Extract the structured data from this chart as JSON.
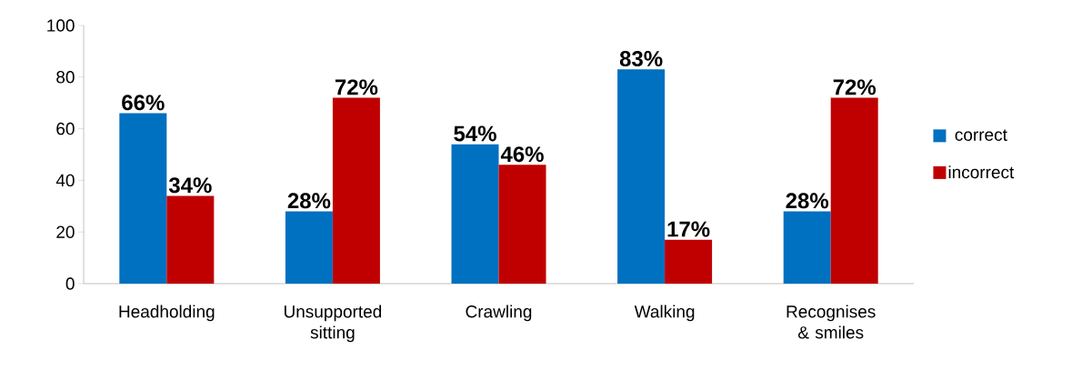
{
  "chart_data": {
    "type": "bar",
    "categories": [
      "Headholding",
      "Unsupported sitting",
      "Crawling",
      "Walking",
      "Recognises & smiles"
    ],
    "series": [
      {
        "name": "correct",
        "color": "#0070c0",
        "values": [
          66,
          28,
          54,
          83,
          28
        ],
        "value_labels": [
          "66%",
          "28%",
          "54%",
          "83%",
          "28%"
        ]
      },
      {
        "name": "incorrect",
        "color": "#c00000",
        "values": [
          34,
          72,
          46,
          17,
          72
        ],
        "value_labels": [
          "34%",
          "72%",
          "46%",
          "17%",
          "72%"
        ]
      }
    ],
    "ylim": [
      0,
      100
    ],
    "yticks": [
      0,
      20,
      40,
      60,
      80,
      100
    ],
    "grid": false,
    "legend": "right"
  }
}
